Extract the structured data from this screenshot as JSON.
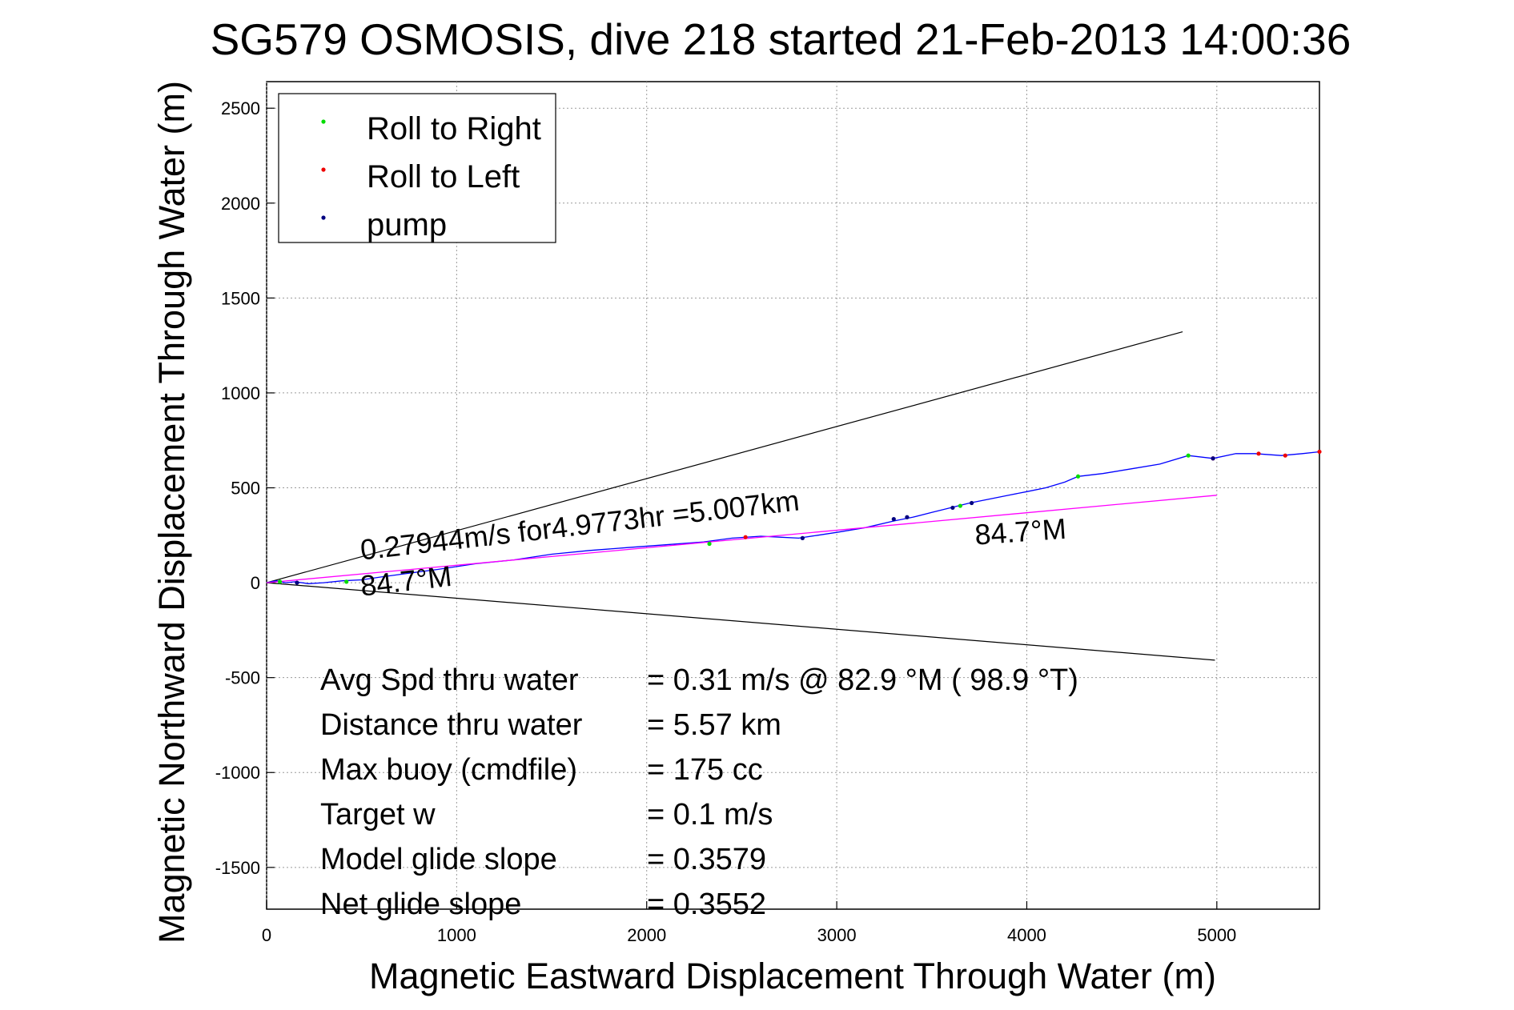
{
  "chart_data": {
    "type": "line",
    "title": "SG579 OSMOSIS, dive 218 started 21-Feb-2013 14:00:36",
    "xlabel": "Magnetic Eastward Displacement Through Water (m)",
    "ylabel": "Magnetic Northward Displacement Through Water (m)",
    "xlim": [
      0,
      5540
    ],
    "ylim": [
      -1720,
      2640
    ],
    "xticks": [
      0,
      1000,
      2000,
      3000,
      4000,
      5000
    ],
    "yticks": [
      -1500,
      -1000,
      -500,
      0,
      500,
      1000,
      1500,
      2000,
      2500
    ],
    "grid": true,
    "legend": {
      "position": "top-left",
      "entries": [
        {
          "label": "Roll to Right",
          "color": "#00dd00"
        },
        {
          "label": "Roll to Left",
          "color": "#ee0000"
        },
        {
          "label": "pump",
          "color": "#000080"
        }
      ]
    },
    "series": [
      {
        "color": "#0000ff",
        "x": [
          0,
          50,
          100,
          150,
          220,
          300,
          400,
          500,
          600,
          750,
          900,
          1100,
          1300,
          1500,
          1700,
          1900,
          2100,
          2300,
          2450,
          2600,
          2700,
          2800,
          2900,
          3000,
          3150,
          3300,
          3400,
          3500,
          3600,
          3700,
          3800,
          3900,
          4000,
          4100,
          4200,
          4270,
          4400,
          4550,
          4700,
          4850,
          4980,
          5100,
          5200,
          5340,
          5450,
          5540
        ],
        "y": [
          0,
          10,
          0,
          5,
          -5,
          0,
          10,
          15,
          30,
          50,
          70,
          100,
          120,
          150,
          170,
          185,
          200,
          215,
          235,
          245,
          240,
          235,
          250,
          265,
          290,
          325,
          345,
          370,
          395,
          420,
          440,
          460,
          480,
          500,
          530,
          560,
          575,
          600,
          625,
          670,
          655,
          680,
          680,
          670,
          680,
          690
        ]
      },
      {
        "color": "#ff00ff",
        "x": [
          0,
          5000
        ],
        "y": [
          0,
          461
        ]
      }
    ],
    "points": {
      "roll_right": {
        "x": [
          70,
          420,
          2330,
          3650,
          4270,
          4850
        ],
        "y": [
          5,
          5,
          205,
          405,
          560,
          670
        ]
      },
      "roll_left": {
        "x": [
          2520,
          4980,
          5220,
          5360,
          5540
        ],
        "y": [
          240,
          655,
          680,
          670,
          690
        ]
      },
      "pump": {
        "x": [
          160,
          2820,
          3300,
          3370,
          3610,
          3710,
          4980
        ],
        "y": [
          0,
          235,
          335,
          345,
          395,
          420,
          655
        ]
      }
    },
    "reference_lines": [
      {
        "x": [
          0,
          4820
        ],
        "y": [
          0,
          1322
        ]
      },
      {
        "x": [
          0,
          4990
        ],
        "y": [
          0,
          -408
        ]
      }
    ],
    "annotations": [
      {
        "text": "0.27944m/s for4.9773hr =5.007km",
        "x": 500,
        "y": 120
      },
      {
        "text": "84.7°M",
        "x": 500,
        "y": -70
      },
      {
        "text": "84.7°M",
        "x": 3730,
        "y": 200
      }
    ],
    "summary": [
      {
        "label": "Avg Spd thru water",
        "value": "=  0.31 m/s @  82.9 °M ( 98.9 °T)"
      },
      {
        "label": "Distance thru water",
        "value": "=  5.57 km"
      },
      {
        "label": "Max buoy (cmdfile)",
        "value": "= 175 cc"
      },
      {
        "label": "Target w",
        "value": "= 0.1 m/s"
      },
      {
        "label": "Model glide slope",
        "value": "= 0.3579"
      },
      {
        "label": "Net glide slope",
        "value": "= 0.3552"
      }
    ]
  }
}
